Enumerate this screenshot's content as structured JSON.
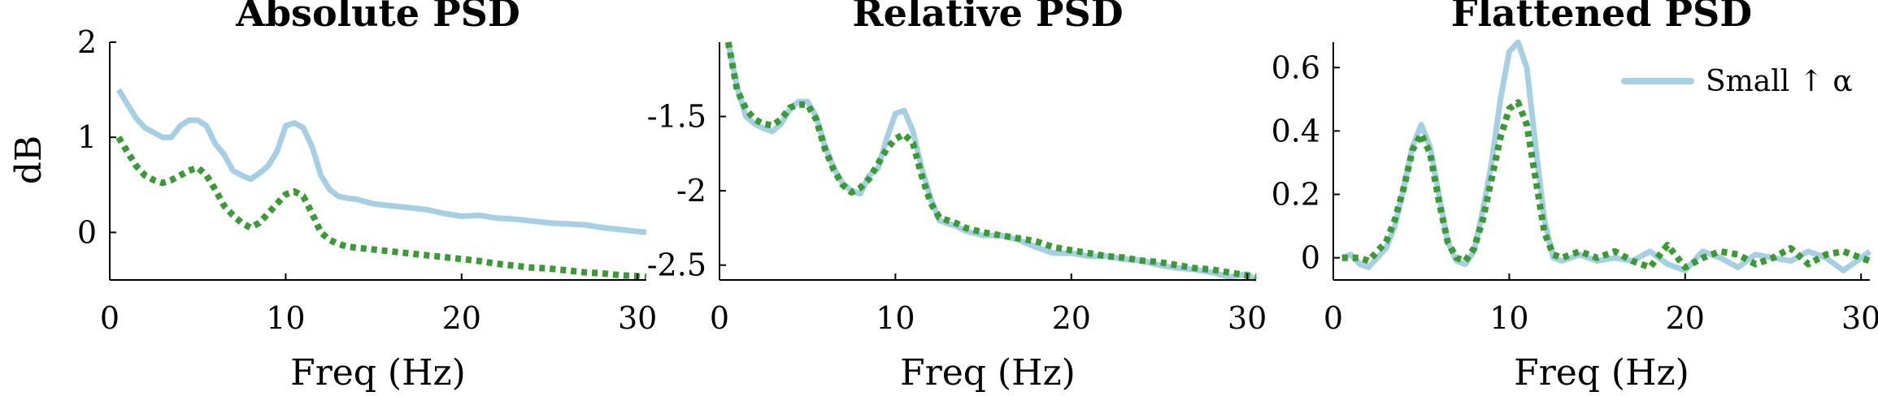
{
  "figure": {
    "ylabel": "dB",
    "colors": {
      "small": "#a7cfe3",
      "dotted": "#3a9b34",
      "axis": "#000000"
    }
  },
  "legend": {
    "label": "Small ↑ α",
    "panel": "Flattened PSD",
    "placement": "top-right"
  },
  "chart_data": [
    {
      "type": "line",
      "title": "Absolute PSD",
      "xlabel": "Freq (Hz)",
      "ylabel": "dB",
      "xlim": [
        0,
        30.5
      ],
      "ylim": [
        -0.5,
        2
      ],
      "xticks": [
        0,
        10,
        20,
        30
      ],
      "yticks": [
        0,
        1,
        2
      ],
      "grid": false,
      "series": [
        {
          "name": "Small ↑ α",
          "style": "solid",
          "color": "#a7cfe3",
          "x": [
            0.5,
            1,
            1.5,
            2,
            2.5,
            3,
            3.5,
            4,
            4.5,
            5,
            5.5,
            6,
            6.5,
            7,
            7.5,
            8,
            8.5,
            9,
            9.5,
            10,
            10.5,
            11,
            11.5,
            12,
            12.5,
            13,
            13.5,
            14,
            15,
            16,
            17,
            18,
            19,
            20,
            21,
            22,
            23,
            24,
            25,
            26,
            27,
            28,
            29,
            30,
            30.5
          ],
          "y": [
            1.5,
            1.35,
            1.2,
            1.1,
            1.05,
            1.0,
            1.0,
            1.12,
            1.18,
            1.18,
            1.12,
            0.93,
            0.82,
            0.65,
            0.6,
            0.56,
            0.62,
            0.7,
            0.85,
            1.12,
            1.15,
            1.1,
            0.9,
            0.6,
            0.45,
            0.38,
            0.36,
            0.35,
            0.3,
            0.28,
            0.26,
            0.24,
            0.2,
            0.17,
            0.18,
            0.15,
            0.14,
            0.12,
            0.1,
            0.09,
            0.08,
            0.05,
            0.03,
            0.01,
            0.0
          ]
        },
        {
          "name": "",
          "style": "dotted",
          "color": "#3a9b34",
          "x": [
            0.5,
            1,
            1.5,
            2,
            2.5,
            3,
            3.5,
            4,
            4.5,
            5,
            5.5,
            6,
            6.5,
            7,
            7.5,
            8,
            8.5,
            9,
            9.5,
            10,
            10.5,
            11,
            11.5,
            12,
            12.5,
            13,
            13.5,
            14,
            15,
            16,
            17,
            18,
            19,
            20,
            21,
            22,
            23,
            24,
            25,
            26,
            27,
            28,
            29,
            30,
            30.5
          ],
          "y": [
            1.0,
            0.85,
            0.7,
            0.6,
            0.55,
            0.52,
            0.55,
            0.6,
            0.65,
            0.68,
            0.6,
            0.45,
            0.28,
            0.18,
            0.1,
            0.05,
            0.1,
            0.2,
            0.3,
            0.4,
            0.43,
            0.38,
            0.2,
            0.0,
            -0.08,
            -0.12,
            -0.15,
            -0.16,
            -0.18,
            -0.2,
            -0.22,
            -0.24,
            -0.26,
            -0.28,
            -0.3,
            -0.33,
            -0.35,
            -0.37,
            -0.38,
            -0.4,
            -0.42,
            -0.43,
            -0.45,
            -0.46,
            -0.47
          ]
        }
      ]
    },
    {
      "type": "line",
      "title": "Relative PSD",
      "xlabel": "Freq (Hz)",
      "ylabel": "",
      "xlim": [
        0,
        30.5
      ],
      "ylim": [
        -2.6,
        -1.0
      ],
      "xticks": [
        0,
        10,
        20,
        30
      ],
      "yticks": [
        -2.5,
        -2,
        -1.5
      ],
      "grid": false,
      "series": [
        {
          "name": "Small ↑ α",
          "style": "solid",
          "color": "#a7cfe3",
          "x": [
            0.5,
            1,
            1.5,
            2,
            2.5,
            3,
            3.5,
            4,
            4.5,
            5,
            5.5,
            6,
            6.5,
            7,
            7.5,
            8,
            8.5,
            9,
            9.5,
            10,
            10.5,
            11,
            11.5,
            12,
            12.5,
            13,
            13.5,
            14,
            15,
            16,
            17,
            18,
            19,
            20,
            21,
            22,
            23,
            24,
            25,
            26,
            27,
            28,
            29,
            30,
            30.5
          ],
          "y": [
            -1.0,
            -1.3,
            -1.5,
            -1.55,
            -1.58,
            -1.6,
            -1.55,
            -1.45,
            -1.4,
            -1.4,
            -1.5,
            -1.7,
            -1.85,
            -1.95,
            -2.0,
            -2.02,
            -1.9,
            -1.85,
            -1.65,
            -1.48,
            -1.46,
            -1.6,
            -1.85,
            -2.05,
            -2.2,
            -2.22,
            -2.24,
            -2.27,
            -2.3,
            -2.3,
            -2.33,
            -2.38,
            -2.42,
            -2.42,
            -2.44,
            -2.44,
            -2.46,
            -2.47,
            -2.5,
            -2.52,
            -2.53,
            -2.55,
            -2.58,
            -2.56,
            -2.6
          ]
        },
        {
          "name": "",
          "style": "dotted",
          "color": "#3a9b34",
          "x": [
            0.5,
            1,
            1.5,
            2,
            2.5,
            3,
            3.5,
            4,
            4.5,
            5,
            5.5,
            6,
            6.5,
            7,
            7.5,
            8,
            8.5,
            9,
            9.5,
            10,
            10.5,
            11,
            11.5,
            12,
            12.5,
            13,
            13.5,
            14,
            15,
            16,
            17,
            18,
            19,
            20,
            21,
            22,
            23,
            24,
            25,
            26,
            27,
            28,
            29,
            30,
            30.5
          ],
          "y": [
            -1.0,
            -1.32,
            -1.45,
            -1.52,
            -1.55,
            -1.56,
            -1.52,
            -1.44,
            -1.42,
            -1.42,
            -1.52,
            -1.72,
            -1.86,
            -1.96,
            -2.01,
            -1.98,
            -1.92,
            -1.82,
            -1.72,
            -1.65,
            -1.62,
            -1.68,
            -1.9,
            -2.08,
            -2.18,
            -2.2,
            -2.22,
            -2.25,
            -2.28,
            -2.3,
            -2.32,
            -2.34,
            -2.38,
            -2.4,
            -2.42,
            -2.44,
            -2.45,
            -2.47,
            -2.48,
            -2.5,
            -2.52,
            -2.53,
            -2.55,
            -2.57,
            -2.58
          ]
        }
      ]
    },
    {
      "type": "line",
      "title": "Flattened PSD",
      "xlabel": "Freq (Hz)",
      "ylabel": "",
      "xlim": [
        0,
        30.5
      ],
      "ylim": [
        -0.07,
        0.68
      ],
      "xticks": [
        0,
        10,
        20,
        30
      ],
      "yticks": [
        0,
        0.2,
        0.4,
        0.6
      ],
      "grid": false,
      "legend": "top-right",
      "series": [
        {
          "name": "Small ↑ α",
          "style": "solid",
          "color": "#a7cfe3",
          "x": [
            0.5,
            1,
            1.5,
            2,
            2.5,
            3,
            3.5,
            4,
            4.5,
            5,
            5.5,
            6,
            6.5,
            7,
            7.5,
            8,
            8.5,
            9,
            9.5,
            10,
            10.5,
            11,
            11.5,
            12,
            12.5,
            13,
            13.5,
            14,
            15,
            16,
            17,
            18,
            19,
            20,
            21,
            22,
            23,
            24,
            25,
            26,
            27,
            28,
            29,
            30,
            30.5
          ],
          "y": [
            0.0,
            0.01,
            -0.02,
            -0.03,
            0.0,
            0.03,
            0.1,
            0.22,
            0.35,
            0.42,
            0.35,
            0.2,
            0.05,
            -0.01,
            -0.02,
            0.02,
            0.15,
            0.3,
            0.5,
            0.65,
            0.68,
            0.6,
            0.35,
            0.12,
            0.0,
            -0.01,
            0.0,
            0.01,
            -0.01,
            0.0,
            -0.01,
            0.02,
            -0.02,
            -0.04,
            0.02,
            0.0,
            -0.03,
            0.01,
            0.0,
            -0.01,
            0.02,
            0.0,
            -0.04,
            0.0,
            0.02
          ]
        },
        {
          "name": "",
          "style": "dotted",
          "color": "#3a9b34",
          "x": [
            0.5,
            1,
            1.5,
            2,
            2.5,
            3,
            3.5,
            4,
            4.5,
            5,
            5.5,
            6,
            6.5,
            7,
            7.5,
            8,
            8.5,
            9,
            9.5,
            10,
            10.5,
            11,
            11.5,
            12,
            12.5,
            13,
            13.5,
            14,
            15,
            16,
            17,
            18,
            19,
            20,
            21,
            22,
            23,
            24,
            25,
            26,
            27,
            28,
            29,
            30,
            30.5
          ],
          "y": [
            0.0,
            0.0,
            0.0,
            -0.01,
            0.02,
            0.05,
            0.12,
            0.22,
            0.34,
            0.39,
            0.33,
            0.18,
            0.05,
            0.0,
            -0.01,
            0.03,
            0.12,
            0.25,
            0.38,
            0.47,
            0.49,
            0.42,
            0.25,
            0.08,
            0.01,
            0.0,
            0.01,
            0.02,
            0.0,
            0.02,
            -0.01,
            -0.03,
            0.04,
            -0.03,
            0.0,
            0.02,
            0.01,
            -0.02,
            0.0,
            0.03,
            -0.02,
            0.01,
            0.02,
            0.0,
            -0.01
          ]
        }
      ]
    }
  ]
}
